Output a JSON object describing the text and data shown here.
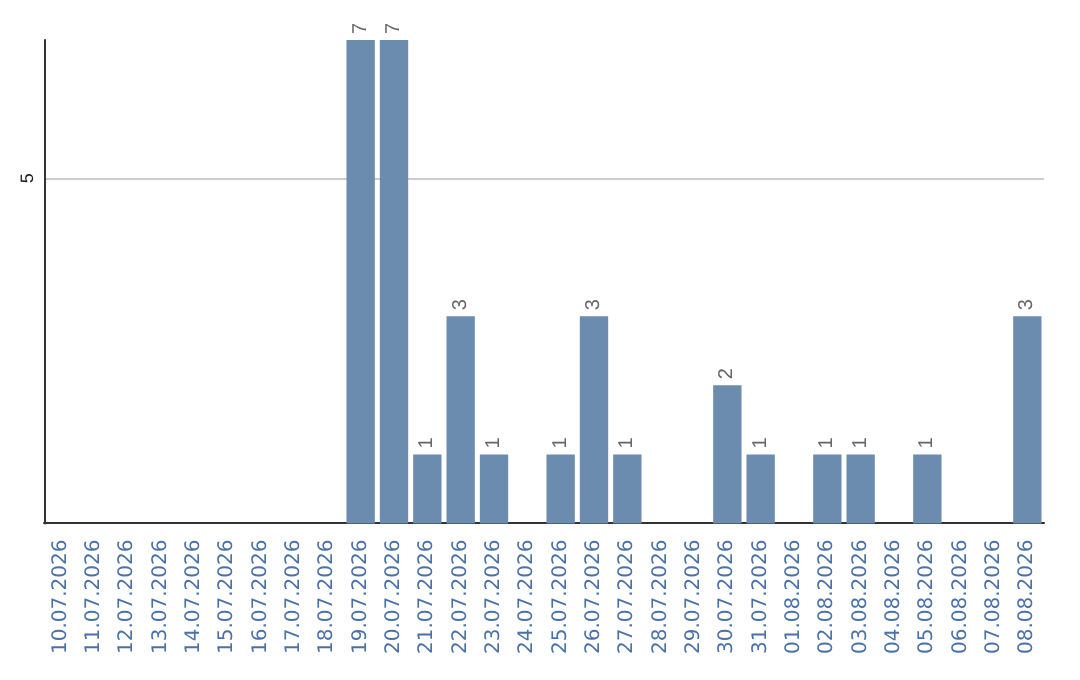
{
  "chart_data": {
    "type": "bar",
    "categories": [
      "10.07.2026",
      "11.07.2026",
      "12.07.2026",
      "13.07.2026",
      "14.07.2026",
      "15.07.2026",
      "16.07.2026",
      "17.07.2026",
      "18.07.2026",
      "19.07.2026",
      "20.07.2026",
      "21.07.2026",
      "22.07.2026",
      "23.07.2026",
      "24.07.2026",
      "25.07.2026",
      "26.07.2026",
      "27.07.2026",
      "28.07.2026",
      "29.07.2026",
      "30.07.2026",
      "31.07.2026",
      "01.08.2026",
      "02.08.2026",
      "03.08.2026",
      "04.08.2026",
      "05.08.2026",
      "06.08.2026",
      "07.08.2026",
      "08.08.2026"
    ],
    "values": [
      0,
      0,
      0,
      0,
      0,
      0,
      0,
      0,
      0,
      7,
      7,
      1,
      3,
      1,
      0,
      1,
      3,
      1,
      0,
      0,
      2,
      1,
      0,
      1,
      1,
      0,
      1,
      0,
      0,
      3
    ],
    "value_labels": [
      null,
      null,
      null,
      null,
      null,
      null,
      null,
      null,
      null,
      "7",
      "7",
      "1",
      "3",
      "1",
      null,
      "1",
      "3",
      "1",
      null,
      null,
      "2",
      "1",
      null,
      "1",
      "1",
      null,
      "1",
      null,
      null,
      "3"
    ],
    "color": "#6b8caf",
    "ylim": [
      0,
      7
    ],
    "yticks": [
      5
    ],
    "grid": "y"
  }
}
